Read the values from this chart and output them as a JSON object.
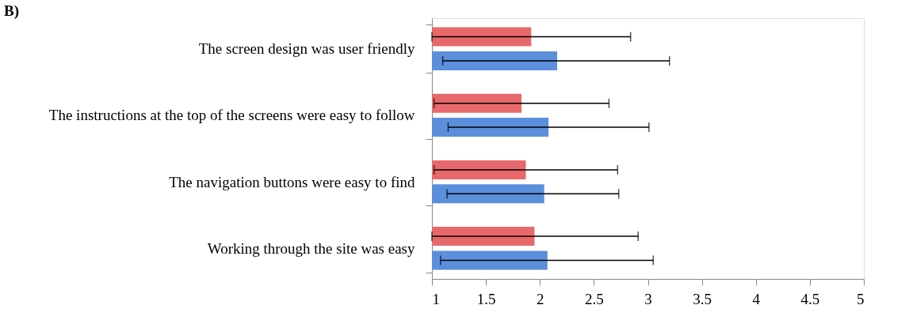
{
  "chart_data": {
    "type": "bar",
    "orientation": "horizontal",
    "title": "B)",
    "categories": [
      "The screen design was user friendly",
      "The instructions at the top of the screens were easy to follow",
      "The navigation buttons were easy to find",
      "Working through the site was easy"
    ],
    "series": [
      {
        "color": "#e8696b",
        "values": [
          1.92,
          1.83,
          1.87,
          1.95
        ],
        "errors": [
          [
            1.0,
            2.84
          ],
          [
            1.02,
            2.64
          ],
          [
            1.02,
            2.72
          ],
          [
            1.0,
            2.91
          ]
        ]
      },
      {
        "color": "#5b8fdc",
        "values": [
          2.16,
          2.08,
          2.04,
          2.07
        ],
        "errors": [
          [
            1.1,
            3.2
          ],
          [
            1.15,
            3.01
          ],
          [
            1.14,
            2.73
          ],
          [
            1.08,
            3.05
          ]
        ]
      }
    ],
    "xlim": [
      1,
      5
    ],
    "xticks": [
      1,
      1.5,
      2,
      2.5,
      3,
      3.5,
      4,
      4.5,
      5
    ],
    "grid": false
  }
}
